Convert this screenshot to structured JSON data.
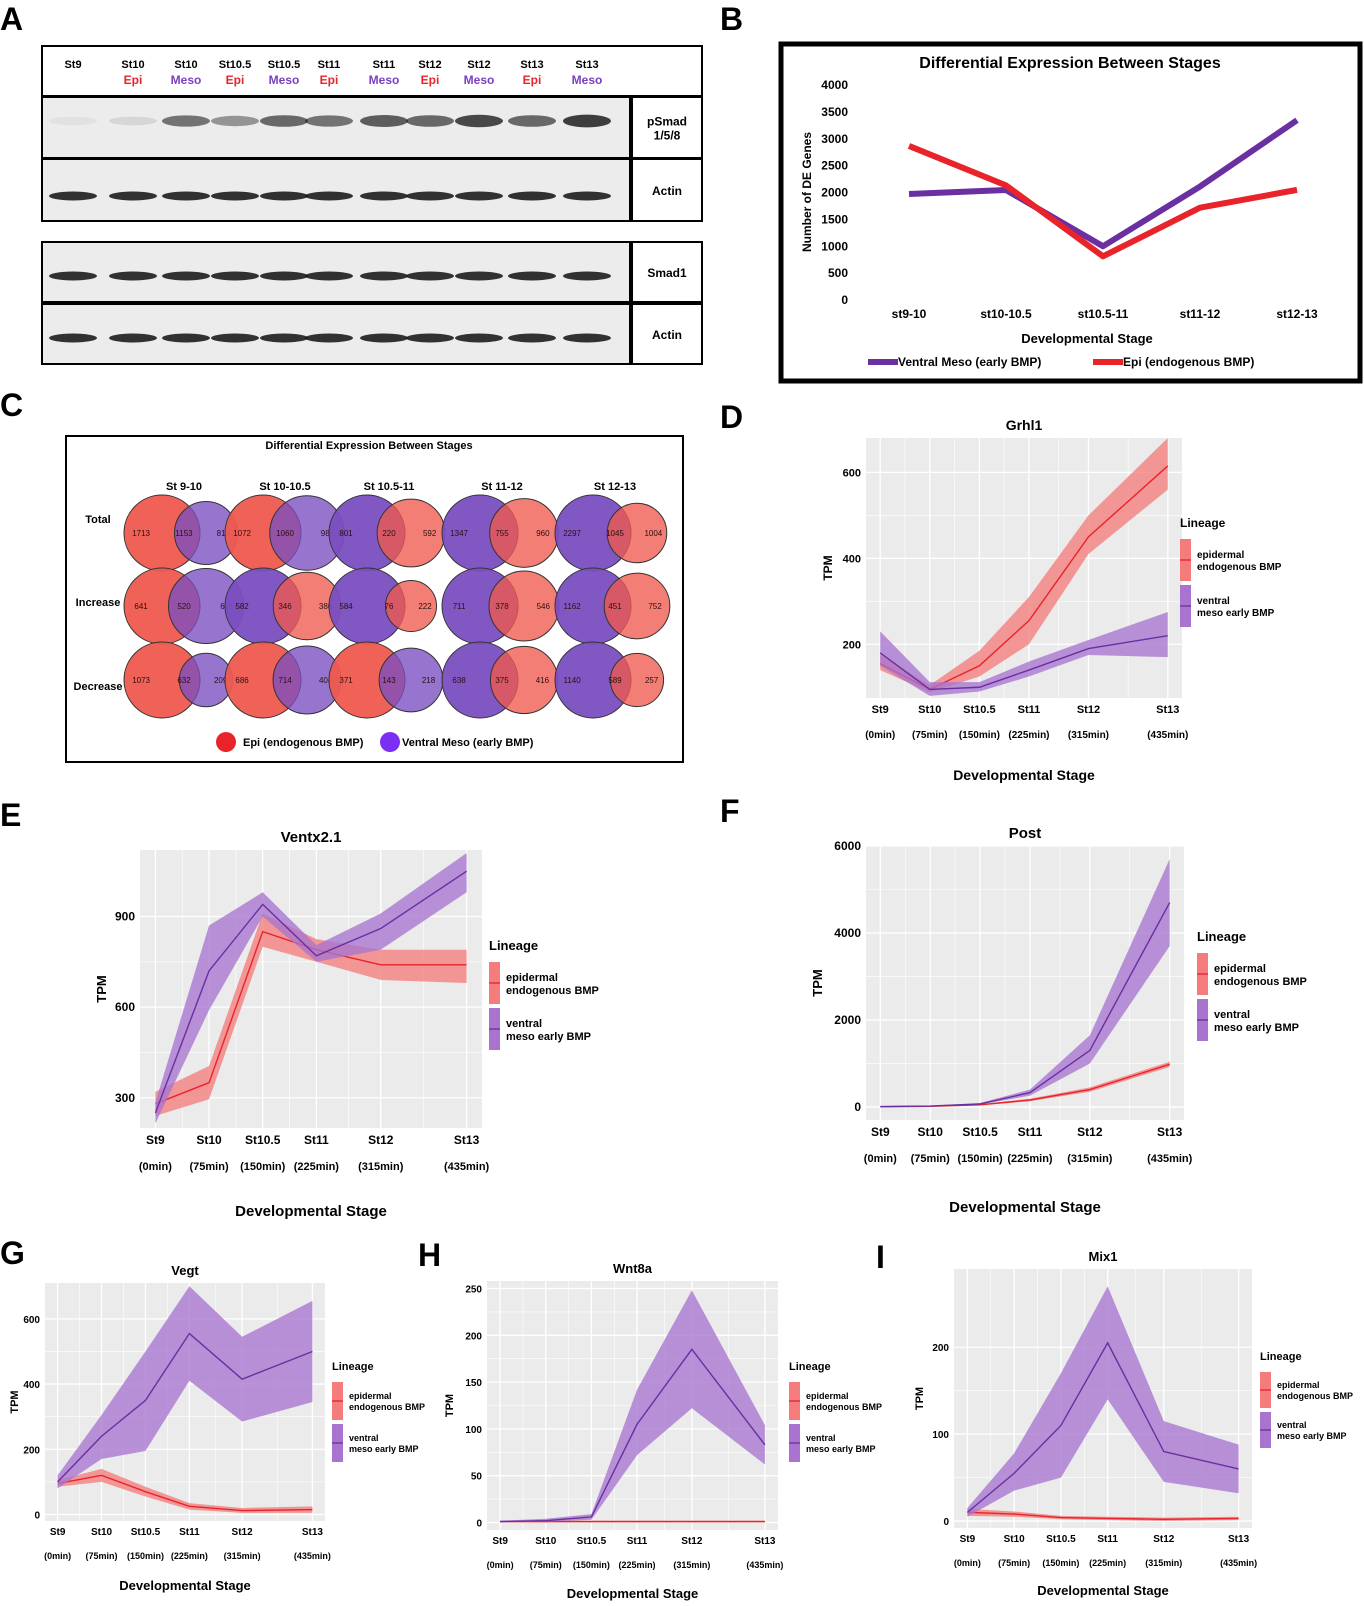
{
  "panel_letters": [
    "A",
    "B",
    "C",
    "D",
    "E",
    "F",
    "G",
    "H",
    "I"
  ],
  "colors": {
    "epi": "#e8242a",
    "meso": "#6a2fa0",
    "epi_band": "#f47c7c",
    "meso_band": "#a874cf",
    "venn_epi": "#ef5a4e",
    "venn_meso": "#7a4ec0",
    "plot_bg": "#ebebeb",
    "grid": "#ffffff",
    "blot_bg": "#ececec"
  },
  "western": {
    "lanes": [
      {
        "stage": "St9",
        "tissue": ""
      },
      {
        "stage": "St10",
        "tissue": "Epi"
      },
      {
        "stage": "St10",
        "tissue": "Meso"
      },
      {
        "stage": "St10.5",
        "tissue": "Epi"
      },
      {
        "stage": "St10.5",
        "tissue": "Meso"
      },
      {
        "stage": "St11",
        "tissue": "Epi"
      },
      {
        "stage": "St11",
        "tissue": "Meso"
      },
      {
        "stage": "St12",
        "tissue": "Epi"
      },
      {
        "stage": "St12",
        "tissue": "Meso"
      },
      {
        "stage": "St13",
        "tissue": "Epi"
      },
      {
        "stage": "St13",
        "tissue": "Meso"
      }
    ],
    "row_labels": [
      "pSmad\n1/5/8",
      "Actin",
      "Smad1",
      "Actin"
    ],
    "psmad_intensity": [
      0.05,
      0.1,
      0.55,
      0.4,
      0.6,
      0.55,
      0.65,
      0.6,
      0.75,
      0.6,
      0.8
    ]
  },
  "chart_data": [
    {
      "id": "B",
      "type": "line",
      "title": "Differential Expression Between Stages",
      "xlabel": "Developmental Stage",
      "ylabel": "Number of DE Genes",
      "categories": [
        "st9-10",
        "st10-10.5",
        "st10.5-11",
        "st11-12",
        "st12-13"
      ],
      "ylim": [
        0,
        4000
      ],
      "yticks": [
        "0",
        "500",
        "1000",
        "1500",
        "2000",
        "2500",
        "3000",
        "3500",
        "4000"
      ],
      "series": [
        {
          "name": "Ventral Meso (early BMP)",
          "color": "meso",
          "values": [
            1972,
            2046,
            1000,
            2111,
            3345
          ]
        },
        {
          "name": "Epi (endogenous BMP)",
          "color": "epi",
          "values": [
            2866,
            2132,
            812,
            1717,
            2049
          ]
        }
      ],
      "legend": "bottom"
    },
    {
      "id": "C",
      "type": "venn",
      "title": "Differential Expression Between Stages",
      "columns": [
        "St 9-10",
        "St 10-10.5",
        "St 10.5-11",
        "St 11-12",
        "St 12-13"
      ],
      "rows": [
        "Total",
        "Increase",
        "Decrease"
      ],
      "cells": [
        [
          {
            "left": "1713",
            "mid": "1153",
            "right": "819",
            "left_set": "epi"
          },
          {
            "left": "1072",
            "mid": "1060",
            "right": "986",
            "left_set": "epi"
          },
          {
            "left": "801",
            "mid": "220",
            "right": "592",
            "left_set": "meso"
          },
          {
            "left": "1347",
            "mid": "755",
            "right": "960",
            "left_set": "meso"
          },
          {
            "left": "2297",
            "mid": "1045",
            "right": "1004",
            "left_set": "meso"
          }
        ],
        [
          {
            "left": "641",
            "mid": "520",
            "right": "611",
            "left_set": "epi"
          },
          {
            "left": "582",
            "mid": "346",
            "right": "386",
            "left_set": "meso"
          },
          {
            "left": "584",
            "mid": "76",
            "right": "222",
            "left_set": "meso"
          },
          {
            "left": "711",
            "mid": "378",
            "right": "546",
            "left_set": "meso"
          },
          {
            "left": "1162",
            "mid": "451",
            "right": "752",
            "left_set": "meso"
          }
        ],
        [
          {
            "left": "1073",
            "mid": "632",
            "right": "209",
            "left_set": "epi"
          },
          {
            "left": "686",
            "mid": "714",
            "right": "404",
            "left_set": "epi"
          },
          {
            "left": "371",
            "mid": "143",
            "right": "218",
            "left_set": "epi"
          },
          {
            "left": "638",
            "mid": "375",
            "right": "416",
            "left_set": "meso"
          },
          {
            "left": "1140",
            "mid": "589",
            "right": "257",
            "left_set": "meso"
          }
        ]
      ],
      "legend": [
        "Epi (endogenous BMP)",
        "Ventral Meso (early BMP)"
      ]
    },
    {
      "id": "D",
      "type": "line",
      "title": "Grhl1",
      "ylabel": "TPM",
      "xlabel": "Developmental Stage",
      "x": [
        0,
        75,
        150,
        225,
        315,
        435
      ],
      "ylim": [
        75,
        680
      ],
      "yticks": [
        200,
        400,
        600
      ],
      "series": [
        {
          "name": "epidermal endogenous BMP",
          "color": "epi",
          "values": [
            155,
            95,
            150,
            255,
            450,
            615
          ],
          "lower": [
            140,
            88,
            125,
            200,
            410,
            560
          ],
          "upper": [
            175,
            105,
            185,
            310,
            500,
            680
          ]
        },
        {
          "name": "ventral meso early BMP",
          "color": "meso",
          "values": [
            180,
            95,
            100,
            140,
            190,
            220
          ],
          "lower": [
            150,
            80,
            90,
            125,
            175,
            170
          ],
          "upper": [
            230,
            112,
            112,
            160,
            210,
            275
          ]
        }
      ]
    },
    {
      "id": "E",
      "type": "line",
      "title": "Ventx2.1",
      "ylabel": "TPM",
      "xlabel": "Developmental Stage",
      "x": [
        0,
        75,
        150,
        225,
        315,
        435
      ],
      "ylim": [
        200,
        1120
      ],
      "yticks": [
        300,
        600,
        900
      ],
      "series": [
        {
          "name": "epidermal endogenous BMP",
          "color": "epi",
          "values": [
            280,
            350,
            850,
            790,
            740,
            740
          ],
          "lower": [
            240,
            295,
            800,
            750,
            690,
            680
          ],
          "upper": [
            320,
            405,
            910,
            825,
            790,
            790
          ]
        },
        {
          "name": "ventral meso early BMP",
          "color": "meso",
          "values": [
            250,
            720,
            940,
            770,
            860,
            1050
          ],
          "lower": [
            215,
            590,
            900,
            750,
            790,
            980
          ],
          "upper": [
            285,
            870,
            980,
            805,
            910,
            1110
          ]
        }
      ]
    },
    {
      "id": "F",
      "type": "line",
      "title": "Post",
      "ylabel": "TPM",
      "xlabel": "Developmental Stage",
      "x": [
        0,
        75,
        150,
        225,
        315,
        435
      ],
      "ylim": [
        -300,
        6000
      ],
      "yticks": [
        0,
        2000,
        4000,
        6000
      ],
      "series": [
        {
          "name": "epidermal endogenous BMP",
          "color": "epi",
          "values": [
            5,
            15,
            50,
            160,
            400,
            980
          ],
          "lower": [
            0,
            10,
            40,
            130,
            350,
            920
          ],
          "upper": [
            10,
            20,
            60,
            190,
            450,
            1040
          ]
        },
        {
          "name": "ventral meso early BMP",
          "color": "meso",
          "values": [
            10,
            20,
            70,
            330,
            1300,
            4700
          ],
          "lower": [
            0,
            12,
            55,
            260,
            1000,
            3700
          ],
          "upper": [
            20,
            30,
            90,
            400,
            1650,
            5700
          ]
        }
      ]
    },
    {
      "id": "G",
      "type": "line",
      "title": "Vegt",
      "ylabel": "TPM",
      "xlabel": "Developmental Stage",
      "x": [
        0,
        75,
        150,
        225,
        315,
        435
      ],
      "ylim": [
        -20,
        710
      ],
      "yticks": [
        0,
        200,
        400,
        600
      ],
      "series": [
        {
          "name": "epidermal endogenous BMP",
          "color": "epi",
          "values": [
            95,
            120,
            70,
            25,
            12,
            15
          ],
          "lower": [
            85,
            100,
            55,
            15,
            5,
            5
          ],
          "upper": [
            105,
            140,
            85,
            35,
            20,
            25
          ]
        },
        {
          "name": "ventral meso early BMP",
          "color": "meso",
          "values": [
            100,
            240,
            350,
            555,
            415,
            500
          ],
          "lower": [
            80,
            170,
            195,
            410,
            285,
            345
          ],
          "upper": [
            120,
            305,
            500,
            700,
            545,
            655
          ]
        }
      ]
    },
    {
      "id": "H",
      "type": "line",
      "title": "Wnt8a",
      "ylabel": "TPM",
      "xlabel": "Developmental Stage",
      "x": [
        0,
        75,
        150,
        225,
        315,
        435
      ],
      "ylim": [
        -8,
        258
      ],
      "yticks": [
        0,
        50,
        100,
        150,
        200,
        250
      ],
      "series": [
        {
          "name": "epidermal endogenous BMP",
          "color": "epi",
          "values": [
            1,
            1,
            1,
            1,
            1,
            1
          ],
          "lower": [
            0,
            0,
            0,
            0,
            0,
            0
          ],
          "upper": [
            2,
            2,
            2,
            2,
            2,
            2
          ]
        },
        {
          "name": "ventral meso early BMP",
          "color": "meso",
          "values": [
            1,
            2,
            6,
            105,
            185,
            83
          ],
          "lower": [
            0,
            1,
            3,
            72,
            122,
            62
          ],
          "upper": [
            2,
            4,
            9,
            142,
            248,
            104
          ]
        }
      ]
    },
    {
      "id": "I",
      "type": "line",
      "title": "Mix1",
      "ylabel": "TPM",
      "xlabel": "Developmental Stage",
      "x": [
        0,
        75,
        150,
        225,
        315,
        435
      ],
      "ylim": [
        -8,
        290
      ],
      "yticks": [
        0,
        100,
        200
      ],
      "series": [
        {
          "name": "epidermal endogenous BMP",
          "color": "epi",
          "values": [
            10,
            8,
            4,
            3,
            2,
            3
          ],
          "lower": [
            6,
            5,
            2,
            1,
            0,
            1
          ],
          "upper": [
            14,
            11,
            6,
            5,
            4,
            5
          ]
        },
        {
          "name": "ventral meso early BMP",
          "color": "meso",
          "values": [
            10,
            55,
            110,
            205,
            80,
            60
          ],
          "lower": [
            5,
            35,
            50,
            140,
            45,
            32
          ],
          "upper": [
            15,
            78,
            170,
            270,
            115,
            88
          ]
        }
      ]
    }
  ],
  "stage_axis": {
    "stages": [
      "St9",
      "St10",
      "St10.5",
      "St11",
      "St12",
      "St13"
    ],
    "times": [
      "(0min)",
      "(75min)",
      "(150min)",
      "(225min)",
      "(315min)",
      "(435min)"
    ]
  },
  "legend_title": "Lineage"
}
